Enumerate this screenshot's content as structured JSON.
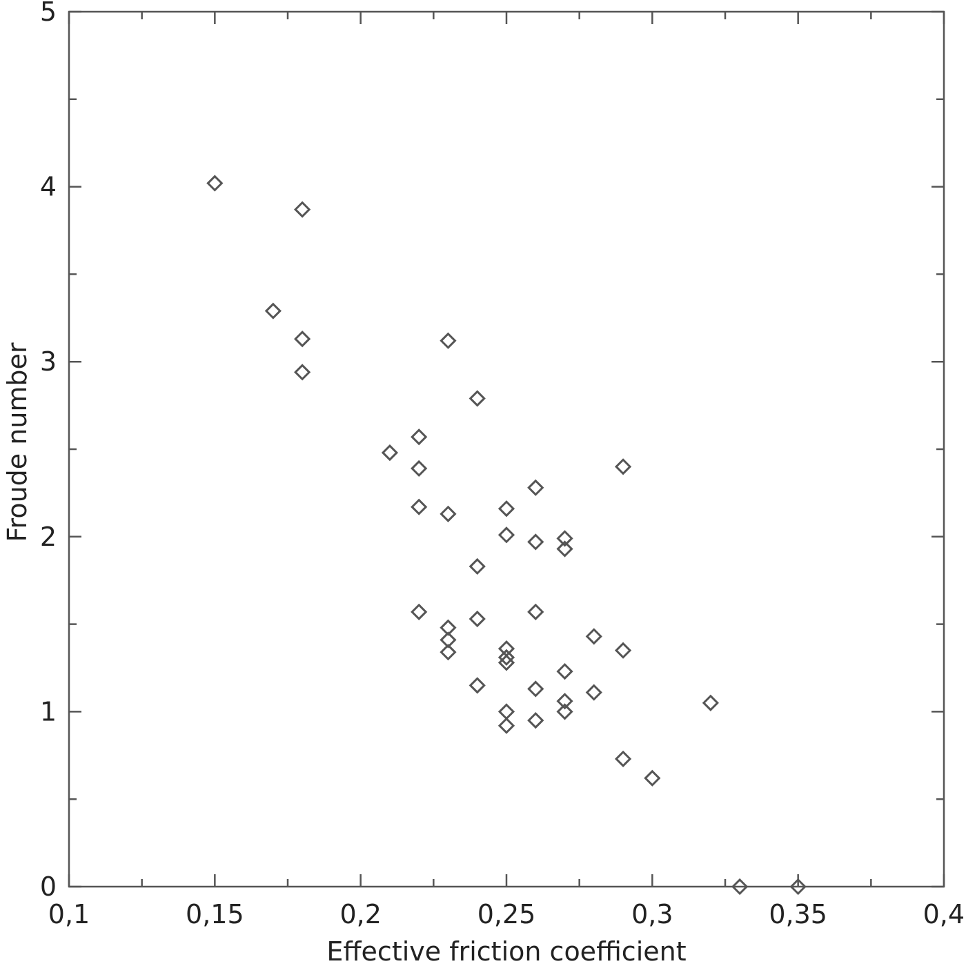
{
  "chart_data": {
    "type": "scatter",
    "title": "",
    "xlabel": "Effective friction coefficient",
    "ylabel": "Froude number",
    "xlim": [
      0.1,
      0.4
    ],
    "ylim": [
      0,
      5
    ],
    "x_ticks": [
      "0,1",
      "0,15",
      "0,2",
      "0,25",
      "0,3",
      "0,35",
      "0,4"
    ],
    "y_ticks": [
      "0",
      "1",
      "2",
      "3",
      "4",
      "5"
    ],
    "grid": false,
    "marker": "diamond-open",
    "marker_color": "#555555",
    "series": [
      {
        "points": [
          [
            0.15,
            4.02
          ],
          [
            0.18,
            3.87
          ],
          [
            0.17,
            3.29
          ],
          [
            0.18,
            3.13
          ],
          [
            0.18,
            2.94
          ],
          [
            0.23,
            3.12
          ],
          [
            0.24,
            2.79
          ],
          [
            0.21,
            2.48
          ],
          [
            0.22,
            2.57
          ],
          [
            0.22,
            2.39
          ],
          [
            0.22,
            2.17
          ],
          [
            0.23,
            2.13
          ],
          [
            0.29,
            2.4
          ],
          [
            0.26,
            2.28
          ],
          [
            0.25,
            2.16
          ],
          [
            0.25,
            2.01
          ],
          [
            0.26,
            1.97
          ],
          [
            0.27,
            1.99
          ],
          [
            0.27,
            1.93
          ],
          [
            0.24,
            1.83
          ],
          [
            0.22,
            1.57
          ],
          [
            0.24,
            1.53
          ],
          [
            0.26,
            1.57
          ],
          [
            0.23,
            1.48
          ],
          [
            0.23,
            1.41
          ],
          [
            0.23,
            1.34
          ],
          [
            0.25,
            1.36
          ],
          [
            0.25,
            1.31
          ],
          [
            0.25,
            1.28
          ],
          [
            0.28,
            1.43
          ],
          [
            0.29,
            1.35
          ],
          [
            0.27,
            1.23
          ],
          [
            0.24,
            1.15
          ],
          [
            0.26,
            1.13
          ],
          [
            0.28,
            1.11
          ],
          [
            0.27,
            1.06
          ],
          [
            0.27,
            1.0
          ],
          [
            0.25,
            1.0
          ],
          [
            0.25,
            0.92
          ],
          [
            0.26,
            0.95
          ],
          [
            0.32,
            1.05
          ],
          [
            0.29,
            0.73
          ],
          [
            0.3,
            0.62
          ],
          [
            0.33,
            0.0
          ],
          [
            0.35,
            0.0
          ]
        ]
      }
    ]
  }
}
